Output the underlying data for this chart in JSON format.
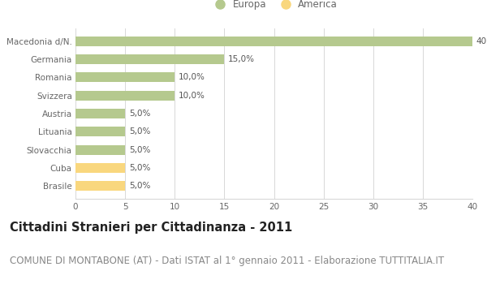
{
  "categories": [
    "Brasile",
    "Cuba",
    "Slovacchia",
    "Lituania",
    "Austria",
    "Svizzera",
    "Romania",
    "Germania",
    "Macedonia d/N."
  ],
  "values": [
    5.0,
    5.0,
    5.0,
    5.0,
    5.0,
    10.0,
    10.0,
    15.0,
    40.0
  ],
  "colors": [
    "#f9d77e",
    "#f9d77e",
    "#b5c98e",
    "#b5c98e",
    "#b5c98e",
    "#b5c98e",
    "#b5c98e",
    "#b5c98e",
    "#b5c98e"
  ],
  "europa_color": "#b5c98e",
  "america_color": "#f9d77e",
  "xlim": [
    0,
    40
  ],
  "xticks": [
    0,
    5,
    10,
    15,
    20,
    25,
    30,
    35,
    40
  ],
  "title": "Cittadini Stranieri per Cittadinanza - 2011",
  "subtitle": "COMUNE DI MONTABONE (AT) - Dati ISTAT al 1° gennaio 2011 - Elaborazione TUTTITALIA.IT",
  "legend_labels": [
    "Europa",
    "America"
  ],
  "grid_color": "#d8d8d8",
  "bg_color": "#ffffff",
  "title_fontsize": 10.5,
  "subtitle_fontsize": 8.5,
  "bar_height": 0.55
}
